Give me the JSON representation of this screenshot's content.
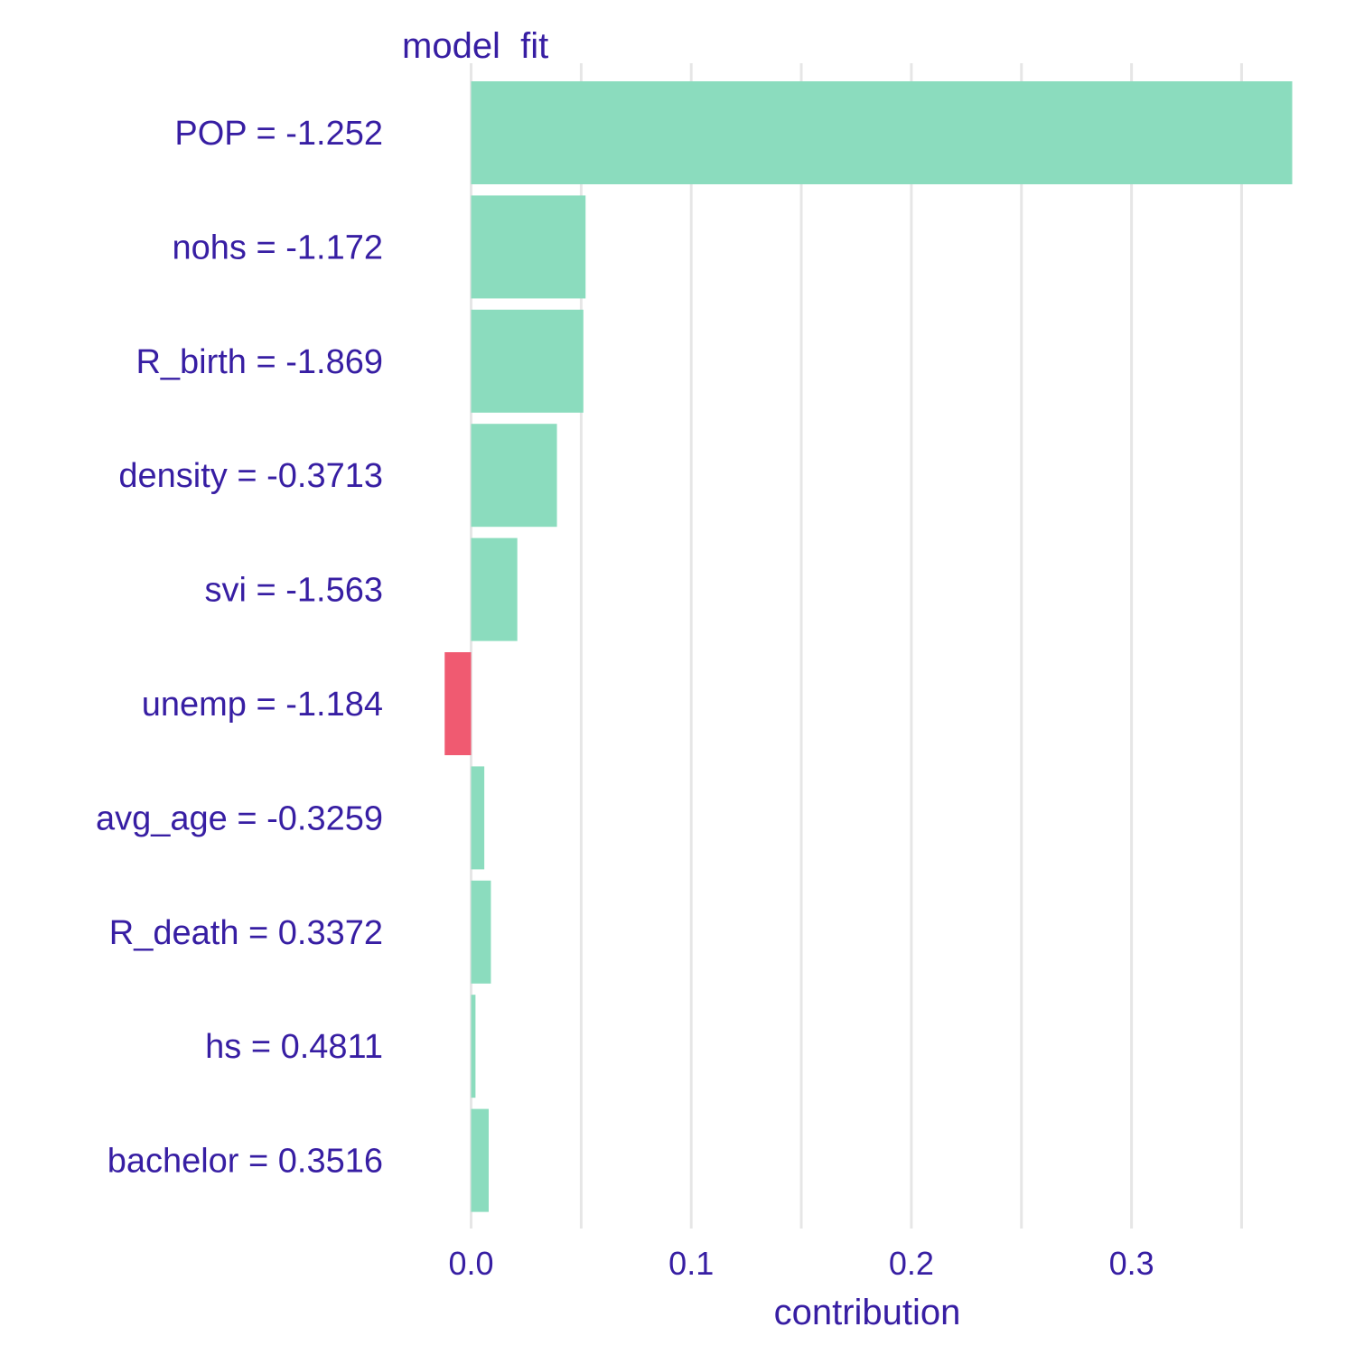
{
  "chart_data": {
    "type": "bar",
    "orientation": "horizontal",
    "title": "model  fit",
    "xlabel": "contribution",
    "ylabel": "",
    "xlim": [
      -0.012,
      0.373
    ],
    "x_ticks": [
      0.0,
      0.1,
      0.2,
      0.3
    ],
    "x_tick_labels": [
      "0.0",
      "0.1",
      "0.2",
      "0.3"
    ],
    "grid": "vertical",
    "legend": "none",
    "colors": {
      "positive": "#8bdcbe",
      "negative": "#f05a71",
      "text": "#371ea3",
      "grid": "#e6e6e6"
    },
    "categories": [
      "POP = -1.252",
      "nohs = -1.172",
      "R_birth = -1.869",
      "density = -0.3713",
      "svi = -1.563",
      "unemp = -1.184",
      "avg_age = -0.3259",
      "R_death = 0.3372",
      "hs = 0.4811",
      "bachelor = 0.3516"
    ],
    "values": [
      0.373,
      0.052,
      0.051,
      0.039,
      0.021,
      -0.012,
      0.006,
      0.009,
      0.002,
      0.008
    ]
  }
}
